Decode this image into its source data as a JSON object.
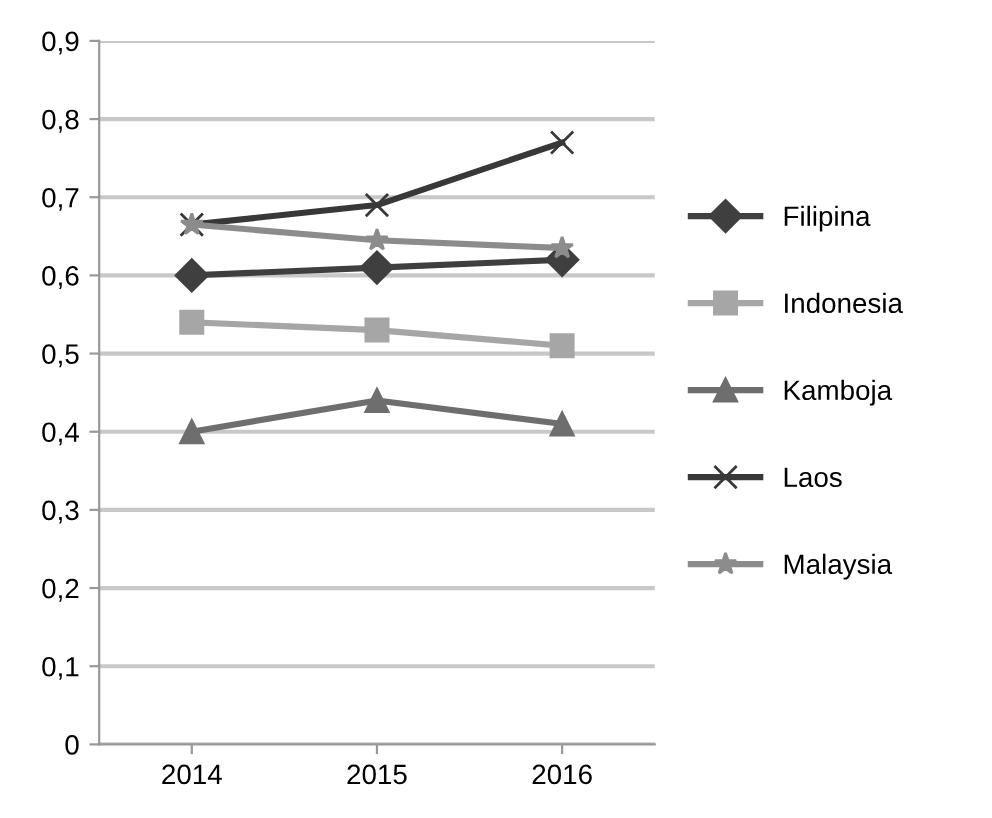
{
  "chart_data": {
    "type": "line",
    "categories": [
      "2014",
      "2015",
      "2016"
    ],
    "series": [
      {
        "name": "Filipina",
        "color": "#3f3f3f",
        "marker": "diamond",
        "values": [
          0.6,
          0.61,
          0.62
        ]
      },
      {
        "name": "Indonesia",
        "color": "#a6a6a6",
        "marker": "square",
        "values": [
          0.54,
          0.53,
          0.51
        ]
      },
      {
        "name": "Kamboja",
        "color": "#6e6e6e",
        "marker": "triangle",
        "values": [
          0.4,
          0.44,
          0.41
        ]
      },
      {
        "name": "Laos",
        "color": "#383838",
        "marker": "cross",
        "values": [
          0.665,
          0.69,
          0.77
        ]
      },
      {
        "name": "Malaysia",
        "color": "#8c8c8c",
        "marker": "star",
        "values": [
          0.665,
          0.645,
          0.635
        ]
      }
    ],
    "ylim": [
      0,
      0.9
    ],
    "yticks": [
      {
        "value": 0,
        "label": "0"
      },
      {
        "value": 0.1,
        "label": "0,1"
      },
      {
        "value": 0.2,
        "label": "0,2"
      },
      {
        "value": 0.3,
        "label": "0,3"
      },
      {
        "value": 0.4,
        "label": "0,4"
      },
      {
        "value": 0.5,
        "label": "0,5"
      },
      {
        "value": 0.6,
        "label": "0,6"
      },
      {
        "value": 0.7,
        "label": "0,7"
      },
      {
        "value": 0.8,
        "label": "0,8"
      },
      {
        "value": 0.9,
        "label": "0,9"
      }
    ],
    "grid": "y",
    "legend": "right",
    "line_style": "solid"
  }
}
